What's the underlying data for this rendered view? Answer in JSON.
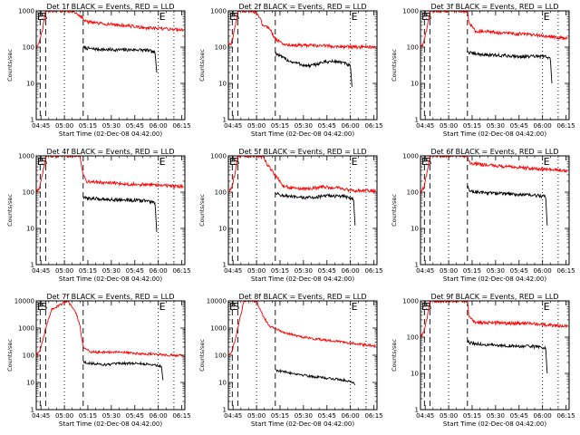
{
  "figure": {
    "xlabel": "Start Time (02-Dec-08 04:42:00)",
    "ylabel": "Counts/sec",
    "x_tick_labels": [
      "04:45",
      "05:00",
      "05:15",
      "05:30",
      "05:45",
      "06:00",
      "06:15"
    ],
    "y_tick_labels": [
      "1",
      "10",
      "100",
      "1000"
    ],
    "colors": {
      "events": "#000000",
      "lld": "#ff0000"
    }
  },
  "chart_data": [
    {
      "type": "line",
      "title": "Det 1f BLACK = Events, RED = LLD",
      "x_unit": "minutes after 04:42:00",
      "xlim": [
        0,
        95
      ],
      "ylim": [
        1,
        1000
      ],
      "yscale": "log",
      "markers": [
        {
          "label": "S",
          "x": 2.5,
          "style": "dashed"
        },
        {
          "label": "",
          "x": 6,
          "style": "dashed"
        },
        {
          "label": "",
          "x": 18,
          "style": "dotted"
        },
        {
          "label": "",
          "x": 30,
          "style": "dashed"
        },
        {
          "label": "E",
          "x": 78,
          "style": "dotted"
        },
        {
          "label": "",
          "x": 88,
          "style": "dotted"
        }
      ],
      "series": [
        {
          "name": "Events",
          "color": "#000000",
          "x": [
            30,
            30.5,
            35,
            45,
            55,
            65,
            72,
            76,
            77
          ],
          "y": [
            100,
            95,
            90,
            85,
            84,
            85,
            80,
            70,
            20
          ]
        },
        {
          "name": "LLD",
          "color": "#ff0000",
          "x": [
            0,
            2,
            4,
            6,
            8,
            12,
            16,
            20,
            24,
            28,
            32,
            40,
            50,
            60,
            70,
            80,
            90,
            94
          ],
          "y": [
            100,
            130,
            300,
            1000,
            1000,
            1000,
            1000,
            1000,
            950,
            750,
            500,
            450,
            420,
            380,
            340,
            320,
            310,
            300
          ]
        }
      ]
    },
    {
      "type": "line",
      "title": "Det 2f BLACK = Events, RED = LLD",
      "x_unit": "minutes after 04:42:00",
      "xlim": [
        0,
        95
      ],
      "ylim": [
        1,
        1000
      ],
      "yscale": "log",
      "markers": [
        {
          "label": "S",
          "x": 2.5,
          "style": "dashed"
        },
        {
          "label": "",
          "x": 6,
          "style": "dashed"
        },
        {
          "label": "",
          "x": 18,
          "style": "dotted"
        },
        {
          "label": "",
          "x": 30,
          "style": "dashed"
        },
        {
          "label": "E",
          "x": 78,
          "style": "dotted"
        },
        {
          "label": "",
          "x": 88,
          "style": "dotted"
        }
      ],
      "series": [
        {
          "name": "Events",
          "color": "#000000",
          "x": [
            30,
            31,
            35,
            40,
            45,
            50,
            55,
            60,
            65,
            70,
            75,
            78,
            79
          ],
          "y": [
            70,
            65,
            50,
            40,
            35,
            30,
            32,
            38,
            40,
            40,
            35,
            30,
            8
          ]
        },
        {
          "name": "LLD",
          "color": "#ff0000",
          "x": [
            0,
            2,
            4,
            6,
            8,
            12,
            16,
            20,
            22,
            26,
            30,
            35,
            40,
            50,
            60,
            70,
            80,
            90,
            94
          ],
          "y": [
            100,
            130,
            300,
            1000,
            1000,
            1000,
            1000,
            650,
            400,
            350,
            170,
            120,
            115,
            110,
            110,
            105,
            100,
            100,
            95
          ]
        }
      ]
    },
    {
      "type": "line",
      "title": "Det 3f BLACK = Events, RED = LLD",
      "x_unit": "minutes after 04:42:00",
      "xlim": [
        0,
        95
      ],
      "ylim": [
        1,
        1000
      ],
      "yscale": "log",
      "markers": [
        {
          "label": "S",
          "x": 2.5,
          "style": "dashed"
        },
        {
          "label": "",
          "x": 6,
          "style": "dashed"
        },
        {
          "label": "",
          "x": 18,
          "style": "dotted"
        },
        {
          "label": "",
          "x": 30,
          "style": "dashed"
        },
        {
          "label": "E",
          "x": 78,
          "style": "dotted"
        },
        {
          "label": "",
          "x": 88,
          "style": "dotted"
        }
      ],
      "series": [
        {
          "name": "Events",
          "color": "#000000",
          "x": [
            30,
            31,
            35,
            45,
            55,
            65,
            75,
            80,
            83,
            84
          ],
          "y": [
            80,
            70,
            65,
            60,
            58,
            55,
            55,
            55,
            50,
            10
          ]
        },
        {
          "name": "LLD",
          "color": "#ff0000",
          "x": [
            0,
            2,
            4,
            6,
            10,
            20,
            28,
            30,
            31,
            35,
            45,
            55,
            65,
            75,
            85,
            94
          ],
          "y": [
            100,
            130,
            300,
            1000,
            1000,
            1000,
            1000,
            1000,
            500,
            280,
            260,
            240,
            230,
            210,
            190,
            170
          ]
        }
      ]
    },
    {
      "type": "line",
      "title": "Det 4f BLACK = Events, RED = LLD",
      "x_unit": "minutes after 04:42:00",
      "xlim": [
        0,
        95
      ],
      "ylim": [
        1,
        1000
      ],
      "yscale": "log",
      "markers": [
        {
          "label": "S",
          "x": 2.5,
          "style": "dashed"
        },
        {
          "label": "",
          "x": 6,
          "style": "dashed"
        },
        {
          "label": "",
          "x": 18,
          "style": "dotted"
        },
        {
          "label": "",
          "x": 30,
          "style": "dashed"
        },
        {
          "label": "E",
          "x": 78,
          "style": "dotted"
        },
        {
          "label": "",
          "x": 88,
          "style": "dotted"
        }
      ],
      "series": [
        {
          "name": "Events",
          "color": "#000000",
          "x": [
            30,
            31,
            40,
            50,
            60,
            70,
            76,
            77
          ],
          "y": [
            70,
            68,
            65,
            62,
            60,
            58,
            50,
            8
          ]
        },
        {
          "name": "LLD",
          "color": "#ff0000",
          "x": [
            0,
            2,
            4,
            6,
            10,
            20,
            28,
            30,
            32,
            40,
            50,
            60,
            70,
            80,
            90,
            94
          ],
          "y": [
            100,
            130,
            300,
            1000,
            1000,
            1000,
            1000,
            300,
            200,
            185,
            175,
            165,
            160,
            155,
            145,
            140
          ]
        }
      ]
    },
    {
      "type": "line",
      "title": "Det 5f BLACK = Events, RED = LLD",
      "x_unit": "minutes after 04:42:00",
      "xlim": [
        0,
        95
      ],
      "ylim": [
        1,
        1000
      ],
      "yscale": "log",
      "markers": [
        {
          "label": "S",
          "x": 2.5,
          "style": "dashed"
        },
        {
          "label": "",
          "x": 6,
          "style": "dashed"
        },
        {
          "label": "",
          "x": 18,
          "style": "dotted"
        },
        {
          "label": "",
          "x": 30,
          "style": "dashed"
        },
        {
          "label": "E",
          "x": 78,
          "style": "dotted"
        },
        {
          "label": "",
          "x": 88,
          "style": "dotted"
        }
      ],
      "series": [
        {
          "name": "Events",
          "color": "#000000",
          "x": [
            30,
            31,
            35,
            45,
            55,
            65,
            75,
            80,
            81
          ],
          "y": [
            100,
            90,
            80,
            70,
            72,
            80,
            75,
            65,
            12
          ]
        },
        {
          "name": "LLD",
          "color": "#ff0000",
          "x": [
            0,
            2,
            4,
            6,
            10,
            18,
            22,
            26,
            30,
            35,
            40,
            50,
            60,
            70,
            80,
            90,
            94
          ],
          "y": [
            100,
            130,
            300,
            1000,
            1000,
            1000,
            900,
            500,
            300,
            150,
            130,
            120,
            140,
            130,
            110,
            110,
            105
          ]
        }
      ]
    },
    {
      "type": "line",
      "title": "Det 6f BLACK = Events, RED = LLD",
      "x_unit": "minutes after 04:42:00",
      "xlim": [
        0,
        95
      ],
      "ylim": [
        1,
        1000
      ],
      "yscale": "log",
      "markers": [
        {
          "label": "S",
          "x": 2.5,
          "style": "dashed"
        },
        {
          "label": "",
          "x": 6,
          "style": "dashed"
        },
        {
          "label": "",
          "x": 18,
          "style": "dotted"
        },
        {
          "label": "",
          "x": 30,
          "style": "dashed"
        },
        {
          "label": "E",
          "x": 78,
          "style": "dotted"
        },
        {
          "label": "",
          "x": 88,
          "style": "dotted"
        }
      ],
      "series": [
        {
          "name": "Events",
          "color": "#000000",
          "x": [
            30,
            31,
            35,
            45,
            55,
            65,
            75,
            80,
            81
          ],
          "y": [
            150,
            110,
            100,
            95,
            90,
            85,
            80,
            75,
            12
          ]
        },
        {
          "name": "LLD",
          "color": "#ff0000",
          "x": [
            0,
            2,
            4,
            6,
            10,
            20,
            28,
            30,
            31,
            35,
            45,
            55,
            65,
            75,
            85,
            94
          ],
          "y": [
            100,
            130,
            300,
            1000,
            1000,
            1000,
            1000,
            1000,
            650,
            600,
            550,
            500,
            470,
            440,
            410,
            390
          ]
        }
      ]
    },
    {
      "type": "line",
      "title": "Det 7f BLACK = Events, RED = LLD",
      "x_unit": "minutes after 04:42:00",
      "xlim": [
        0,
        95
      ],
      "ylim": [
        1,
        10000
      ],
      "yscale": "log",
      "markers": [
        {
          "label": "S",
          "x": 2.5,
          "style": "dashed"
        },
        {
          "label": "",
          "x": 6,
          "style": "dashed"
        },
        {
          "label": "",
          "x": 18,
          "style": "dotted"
        },
        {
          "label": "",
          "x": 30,
          "style": "dashed"
        },
        {
          "label": "E",
          "x": 78,
          "style": "dotted"
        },
        {
          "label": "",
          "x": 88,
          "style": "dotted"
        }
      ],
      "series": [
        {
          "name": "Events",
          "color": "#000000",
          "x": [
            30,
            31,
            35,
            45,
            55,
            65,
            75,
            80,
            81
          ],
          "y": [
            60,
            55,
            50,
            45,
            50,
            50,
            45,
            40,
            12
          ]
        },
        {
          "name": "LLD",
          "color": "#ff0000",
          "x": [
            0,
            2,
            4,
            6,
            10,
            20,
            26,
            28,
            30,
            35,
            45,
            55,
            65,
            75,
            85,
            94
          ],
          "y": [
            100,
            130,
            300,
            1000,
            5000,
            10000,
            3000,
            1200,
            200,
            130,
            130,
            130,
            115,
            110,
            100,
            100
          ]
        }
      ]
    },
    {
      "type": "line",
      "title": "Det 8f BLACK = Events, RED = LLD",
      "x_unit": "minutes after 04:42:00",
      "xlim": [
        0,
        95
      ],
      "ylim": [
        1,
        10000
      ],
      "yscale": "log",
      "markers": [
        {
          "label": "S",
          "x": 2.5,
          "style": "dashed"
        },
        {
          "label": "",
          "x": 6,
          "style": "dashed"
        },
        {
          "label": "",
          "x": 18,
          "style": "dotted"
        },
        {
          "label": "",
          "x": 30,
          "style": "dashed"
        },
        {
          "label": "E",
          "x": 78,
          "style": "dotted"
        },
        {
          "label": "",
          "x": 88,
          "style": "dotted"
        }
      ],
      "series": [
        {
          "name": "Events",
          "color": "#000000",
          "x": [
            30,
            31,
            35,
            45,
            55,
            65,
            75,
            80,
            81
          ],
          "y": [
            30,
            28,
            25,
            20,
            16,
            14,
            12,
            10,
            8
          ]
        },
        {
          "name": "LLD",
          "color": "#ff0000",
          "x": [
            0,
            2,
            4,
            6,
            10,
            18,
            22,
            26,
            30,
            35,
            45,
            55,
            65,
            75,
            85,
            94
          ],
          "y": [
            100,
            130,
            300,
            1000,
            10000,
            10000,
            3000,
            1200,
            1000,
            700,
            500,
            400,
            350,
            300,
            250,
            220
          ]
        }
      ]
    },
    {
      "type": "line",
      "title": "Det 9f BLACK = Events, RED = LLD",
      "x_unit": "minutes after 04:42:00",
      "xlim": [
        0,
        95
      ],
      "ylim": [
        1,
        1000
      ],
      "yscale": "log",
      "markers": [
        {
          "label": "S",
          "x": 2.5,
          "style": "dashed"
        },
        {
          "label": "",
          "x": 6,
          "style": "dashed"
        },
        {
          "label": "",
          "x": 18,
          "style": "dotted"
        },
        {
          "label": "",
          "x": 30,
          "style": "dashed"
        },
        {
          "label": "E",
          "x": 78,
          "style": "dotted"
        },
        {
          "label": "",
          "x": 88,
          "style": "dotted"
        }
      ],
      "series": [
        {
          "name": "Events",
          "color": "#000000",
          "x": [
            30,
            31,
            35,
            45,
            55,
            65,
            75,
            80,
            81
          ],
          "y": [
            80,
            70,
            65,
            60,
            58,
            55,
            55,
            50,
            10
          ]
        },
        {
          "name": "LLD",
          "color": "#ff0000",
          "x": [
            0,
            2,
            4,
            6,
            10,
            20,
            28,
            30,
            31,
            35,
            45,
            55,
            65,
            75,
            85,
            94
          ],
          "y": [
            100,
            130,
            300,
            1000,
            1000,
            1000,
            1000,
            1000,
            350,
            250,
            250,
            240,
            240,
            230,
            210,
            200
          ]
        }
      ]
    }
  ]
}
